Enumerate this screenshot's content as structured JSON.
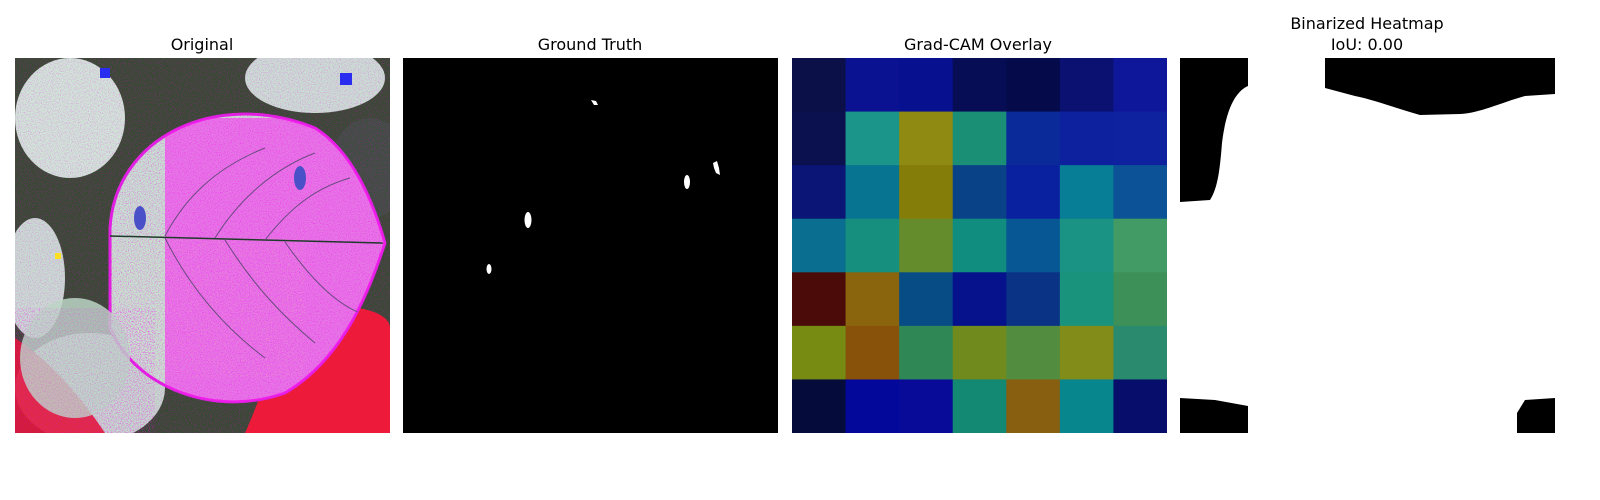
{
  "panels": [
    {
      "title": "Original"
    },
    {
      "title": "Ground Truth"
    },
    {
      "title": "Grad-CAM Overlay"
    },
    {
      "title": "Binarized Heatmap",
      "subtitle": "IoU: 0.00"
    }
  ],
  "gradcam": {
    "grid_size": [
      7,
      7
    ],
    "cell_colors": [
      [
        "#0b1148",
        "#0a1292",
        "#07108f",
        "#070d55",
        "#050b4a",
        "#0a1170",
        "#0e169a"
      ],
      [
        "#0b114f",
        "#1b958a",
        "#8f8a12",
        "#1b8e76",
        "#0b2a9a",
        "#0d209d",
        "#0e22a0"
      ],
      [
        "#0b1575",
        "#077592",
        "#857d09",
        "#0a4288",
        "#0a219f",
        "#087d96",
        "#0b5396"
      ],
      [
        "#096e90",
        "#168f7e",
        "#658c2c",
        "#118d7f",
        "#085795",
        "#1b9384",
        "#429b64"
      ],
      [
        "#4b0c09",
        "#8a650d",
        "#084c86",
        "#06118c",
        "#0a3386",
        "#1a937d",
        "#3c9058"
      ],
      [
        "#778a12",
        "#89520a",
        "#2e8755",
        "#708a1e",
        "#518c3f",
        "#818c19",
        "#298a6e"
      ],
      [
        "#050b3b",
        "#04089a",
        "#070b98",
        "#138872",
        "#885f10",
        "#07868e",
        "#060d6b"
      ]
    ]
  }
}
